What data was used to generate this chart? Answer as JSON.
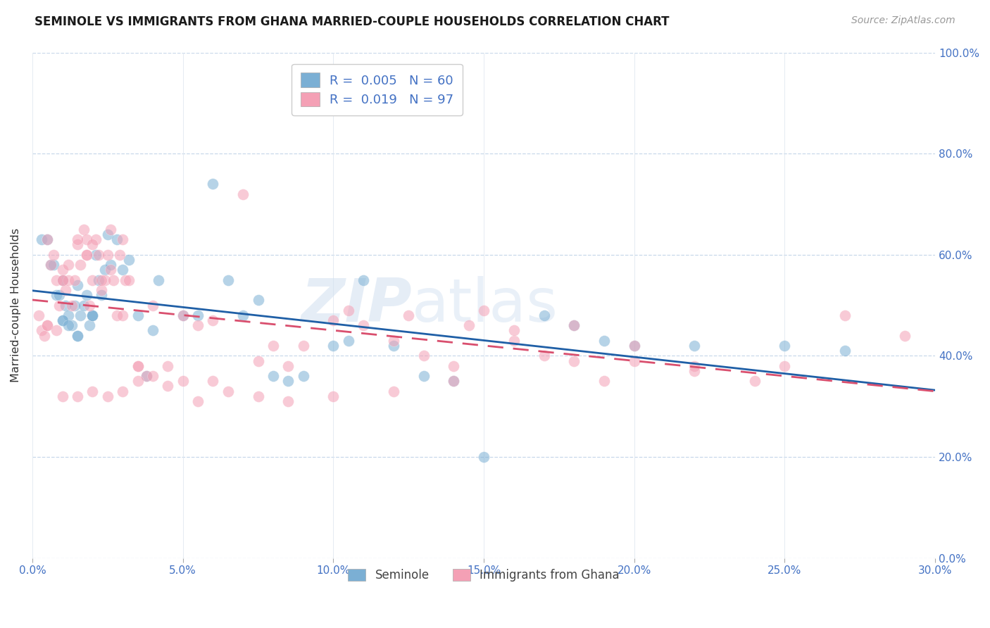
{
  "title": "SEMINOLE VS IMMIGRANTS FROM GHANA MARRIED-COUPLE HOUSEHOLDS CORRELATION CHART",
  "source": "Source: ZipAtlas.com",
  "ylabel": "Married-couple Households",
  "ytick_vals": [
    0,
    20,
    40,
    60,
    80,
    100
  ],
  "xtick_vals": [
    0,
    5,
    10,
    15,
    20,
    25,
    30
  ],
  "xlim": [
    0,
    30
  ],
  "ylim": [
    0,
    100
  ],
  "legend_blue_r": "0.005",
  "legend_blue_n": "60",
  "legend_pink_r": "0.019",
  "legend_pink_n": "97",
  "seminole_color": "#7bafd4",
  "ghana_color": "#f4a0b5",
  "trend_blue": "#1f5fa6",
  "trend_pink": "#d94f6e",
  "watermark_zip": "ZIP",
  "watermark_atlas": "atlas",
  "seminole_x": [
    0.3,
    0.5,
    0.6,
    0.7,
    0.8,
    0.9,
    1.0,
    1.0,
    1.1,
    1.2,
    1.3,
    1.4,
    1.5,
    1.5,
    1.6,
    1.7,
    1.8,
    1.9,
    2.0,
    2.0,
    2.1,
    2.2,
    2.3,
    2.4,
    2.5,
    2.6,
    2.8,
    3.0,
    3.2,
    3.5,
    3.8,
    4.0,
    4.2,
    5.0,
    5.5,
    6.0,
    6.5,
    7.0,
    7.5,
    8.0,
    8.5,
    9.0,
    10.0,
    10.5,
    11.0,
    12.0,
    13.0,
    14.0,
    15.0,
    17.0,
    18.0,
    19.0,
    20.0,
    22.0,
    25.0,
    27.0,
    1.0,
    1.2,
    1.5,
    2.0
  ],
  "seminole_y": [
    63,
    63,
    58,
    58,
    52,
    52,
    55,
    47,
    50,
    48,
    46,
    50,
    54,
    44,
    48,
    50,
    52,
    46,
    48,
    48,
    60,
    55,
    52,
    57,
    64,
    58,
    63,
    57,
    59,
    48,
    36,
    45,
    55,
    48,
    48,
    74,
    55,
    48,
    51,
    36,
    35,
    36,
    42,
    43,
    55,
    42,
    36,
    35,
    20,
    48,
    46,
    43,
    42,
    42,
    42,
    41,
    47,
    46,
    44,
    48
  ],
  "ghana_x": [
    0.2,
    0.3,
    0.4,
    0.5,
    0.5,
    0.6,
    0.7,
    0.8,
    0.9,
    1.0,
    1.0,
    1.1,
    1.2,
    1.3,
    1.4,
    1.5,
    1.6,
    1.7,
    1.8,
    1.8,
    1.9,
    2.0,
    2.1,
    2.2,
    2.3,
    2.4,
    2.5,
    2.6,
    2.7,
    2.8,
    2.9,
    3.0,
    3.1,
    3.2,
    3.5,
    3.8,
    4.0,
    4.5,
    5.0,
    5.5,
    6.0,
    7.0,
    8.0,
    9.0,
    10.0,
    11.0,
    12.0,
    13.0,
    14.0,
    15.0,
    0.5,
    0.8,
    1.0,
    1.2,
    1.5,
    1.8,
    2.0,
    2.3,
    2.6,
    3.0,
    3.5,
    4.0,
    5.0,
    6.0,
    7.5,
    8.5,
    10.5,
    12.5,
    14.5,
    16.0,
    17.0,
    18.0,
    19.0,
    20.0,
    22.0,
    24.0,
    25.0,
    27.0,
    29.0,
    1.0,
    1.5,
    2.0,
    2.5,
    3.0,
    3.5,
    4.5,
    5.5,
    6.5,
    7.5,
    8.5,
    10.0,
    12.0,
    14.0,
    16.0,
    18.0,
    20.0,
    22.0
  ],
  "ghana_y": [
    48,
    45,
    44,
    63,
    46,
    58,
    60,
    55,
    50,
    57,
    55,
    53,
    55,
    50,
    55,
    62,
    58,
    65,
    63,
    60,
    50,
    55,
    63,
    60,
    53,
    55,
    60,
    57,
    55,
    48,
    60,
    48,
    55,
    55,
    38,
    36,
    50,
    38,
    48,
    46,
    35,
    72,
    42,
    42,
    47,
    46,
    43,
    40,
    38,
    49,
    46,
    45,
    55,
    58,
    63,
    60,
    62,
    55,
    65,
    63,
    38,
    36,
    35,
    47,
    39,
    38,
    49,
    48,
    46,
    43,
    40,
    39,
    35,
    42,
    38,
    35,
    38,
    48,
    44,
    32,
    32,
    33,
    32,
    33,
    35,
    34,
    31,
    33,
    32,
    31,
    32,
    33,
    35,
    45,
    46,
    39,
    37
  ]
}
